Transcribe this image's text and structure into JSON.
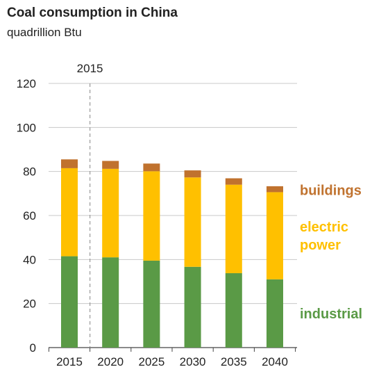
{
  "chart_data": {
    "type": "bar",
    "stacked": true,
    "title": "Coal consumption in China",
    "subtitle": "quadrillion Btu",
    "xlabel": "",
    "ylabel": "",
    "categories": [
      "2015",
      "2020",
      "2025",
      "2030",
      "2035",
      "2040"
    ],
    "ylim": [
      0,
      120
    ],
    "yticks": [
      "0",
      "20",
      "40",
      "60",
      "80",
      "100",
      "120"
    ],
    "grid": true,
    "legend_position": "right",
    "reference_line": {
      "x": "2015",
      "label": "2015"
    },
    "series": [
      {
        "name": "industrial",
        "label_lines": [
          "industrial"
        ],
        "color": "#5a9a46",
        "values": [
          41.5,
          41.0,
          39.5,
          36.7,
          33.8,
          31.0
        ]
      },
      {
        "name": "electric power",
        "label_lines": [
          "electric",
          "power"
        ],
        "color": "#ffc000",
        "values": [
          40.0,
          40.2,
          40.6,
          40.6,
          40.2,
          39.6
        ]
      },
      {
        "name": "buildings",
        "label_lines": [
          "buildings"
        ],
        "color": "#c0722e",
        "values": [
          4.0,
          3.6,
          3.5,
          3.2,
          2.9,
          2.7
        ]
      }
    ]
  }
}
